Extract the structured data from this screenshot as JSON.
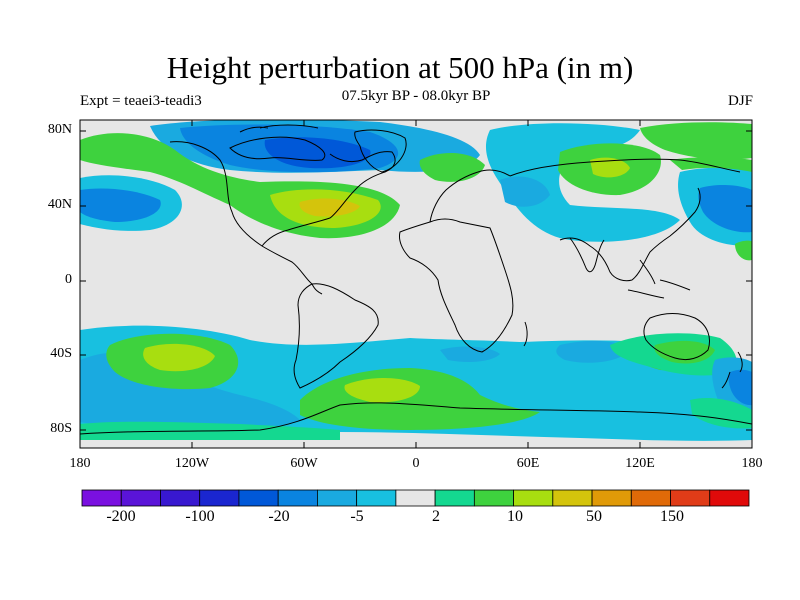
{
  "header": {
    "title": "Height perturbation at 500 hPa (in m)",
    "experiment": "Expt = teaei3-teadi3",
    "period": "07.5kyr BP - 08.0kyr BP",
    "season": "DJF"
  },
  "map": {
    "projection": "cylindrical-equidistant",
    "lat_labels": [
      "80N",
      "40N",
      "0",
      "40S",
      "80S"
    ],
    "lon_labels": [
      "180",
      "120W",
      "60W",
      "0",
      "60E",
      "120E",
      "180"
    ],
    "fill_colors": {
      "neutral": "#e6e6e6",
      "neg_very_strong": "#0058d8",
      "neg_strong": "#0a84e0",
      "neg_med": "#1aaae0",
      "neg_weak": "#18c0e0",
      "pos_weak": "#14d890",
      "pos_med": "#3ed23e",
      "pos_strong": "#a8de10",
      "pos_very_strong": "#d4c40c"
    }
  },
  "colorbar": {
    "colors": [
      "#7a10e0",
      "#5a14d8",
      "#3818d0",
      "#1a26d0",
      "#0058d8",
      "#0a84e0",
      "#1aaae0",
      "#18c0e0",
      "#e6e6e6",
      "#14d890",
      "#3ed23e",
      "#a8de10",
      "#d4c40c",
      "#e09a08",
      "#e06a08",
      "#e03c18",
      "#e00a0a"
    ],
    "labels": [
      "-200",
      "-100",
      "-20",
      "-5",
      "2",
      "10",
      "50",
      "150"
    ]
  }
}
